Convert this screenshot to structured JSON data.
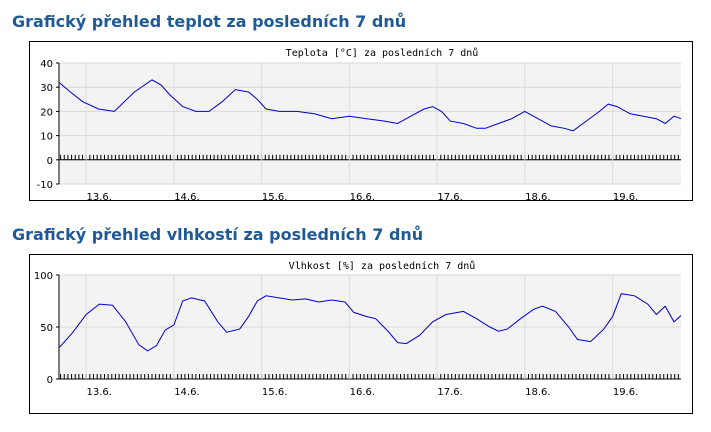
{
  "sections": [
    {
      "heading": "Grafický přehled teplot za posledních 7 dnů"
    },
    {
      "heading": "Grafický přehled vlhkostí za posledních 7 dnů"
    }
  ],
  "chart_data": [
    {
      "type": "line",
      "title": "Teplota [°C] za posledních 7 dnů",
      "xlabel": "",
      "ylabel": "",
      "ylim": [
        -10,
        40
      ],
      "yticks": [
        40,
        30,
        20,
        10,
        0,
        -10
      ],
      "xlim": [
        12.69,
        19.78
      ],
      "xticks": [
        {
          "value": 13,
          "label": "13.6."
        },
        {
          "value": 14,
          "label": "14.6."
        },
        {
          "value": 15,
          "label": "15.6."
        },
        {
          "value": 16,
          "label": "16.6."
        },
        {
          "value": 17,
          "label": "17.6."
        },
        {
          "value": 18,
          "label": "18.6."
        },
        {
          "value": 19,
          "label": "19.6."
        }
      ],
      "grid": true,
      "line_color": "#0000cc",
      "series": [
        {
          "x": [
            12.69,
            12.82,
            12.96,
            13.14,
            13.32,
            13.55,
            13.75,
            13.85,
            13.95,
            14.1,
            14.25,
            14.4,
            14.55,
            14.7,
            14.85,
            14.95,
            15.05,
            15.2,
            15.4,
            15.6,
            15.8,
            16.0,
            16.2,
            16.4,
            16.55,
            16.7,
            16.85,
            16.95,
            17.05,
            17.15,
            17.3,
            17.45,
            17.55,
            17.7,
            17.85,
            18.0,
            18.15,
            18.3,
            18.45,
            18.55,
            18.7,
            18.85,
            18.95,
            19.05,
            19.2,
            19.35,
            19.5,
            19.6,
            19.7,
            19.78
          ],
          "y": [
            32,
            28,
            24,
            21,
            20,
            28,
            33,
            31,
            27,
            22,
            20,
            20,
            24,
            29,
            28,
            25,
            21,
            20,
            20,
            19,
            17,
            18,
            17,
            16,
            15,
            18,
            21,
            22,
            20,
            16,
            15,
            13,
            13,
            15,
            17,
            20,
            17,
            14,
            13,
            12,
            16,
            20,
            23,
            22,
            19,
            18,
            17,
            15,
            18,
            17
          ]
        }
      ]
    },
    {
      "type": "line",
      "title": "Vlhkost [%] za posledních 7 dnů",
      "xlabel": "",
      "ylabel": "",
      "ylim": [
        0,
        100
      ],
      "yticks": [
        100,
        50,
        0
      ],
      "xlim": [
        12.69,
        19.78
      ],
      "xticks": [
        {
          "value": 13,
          "label": "13.6."
        },
        {
          "value": 14,
          "label": "14.6."
        },
        {
          "value": 15,
          "label": "15.6."
        },
        {
          "value": 16,
          "label": "16.6."
        },
        {
          "value": 17,
          "label": "17.6."
        },
        {
          "value": 18,
          "label": "18.6."
        },
        {
          "value": 19,
          "label": "19.6."
        }
      ],
      "grid": true,
      "line_color": "#0000cc",
      "series": [
        {
          "x": [
            12.69,
            12.85,
            13.0,
            13.15,
            13.3,
            13.45,
            13.6,
            13.7,
            13.8,
            13.9,
            14.0,
            14.1,
            14.2,
            14.35,
            14.5,
            14.6,
            14.75,
            14.85,
            14.95,
            15.05,
            15.2,
            15.35,
            15.5,
            15.65,
            15.8,
            15.95,
            16.05,
            16.2,
            16.3,
            16.45,
            16.55,
            16.65,
            16.8,
            16.95,
            17.1,
            17.3,
            17.45,
            17.6,
            17.7,
            17.8,
            17.95,
            18.1,
            18.2,
            18.35,
            18.5,
            18.6,
            18.75,
            18.9,
            19.0,
            19.1,
            19.25,
            19.4,
            19.5,
            19.6,
            19.7,
            19.78
          ],
          "y": [
            30,
            45,
            62,
            72,
            71,
            55,
            33,
            27,
            32,
            47,
            52,
            75,
            78,
            75,
            55,
            45,
            48,
            60,
            75,
            80,
            78,
            76,
            77,
            74,
            76,
            74,
            64,
            60,
            58,
            45,
            35,
            34,
            42,
            55,
            62,
            65,
            58,
            50,
            46,
            48,
            58,
            67,
            70,
            65,
            50,
            38,
            36,
            48,
            60,
            82,
            80,
            72,
            62,
            70,
            55,
            61
          ]
        }
      ]
    }
  ]
}
